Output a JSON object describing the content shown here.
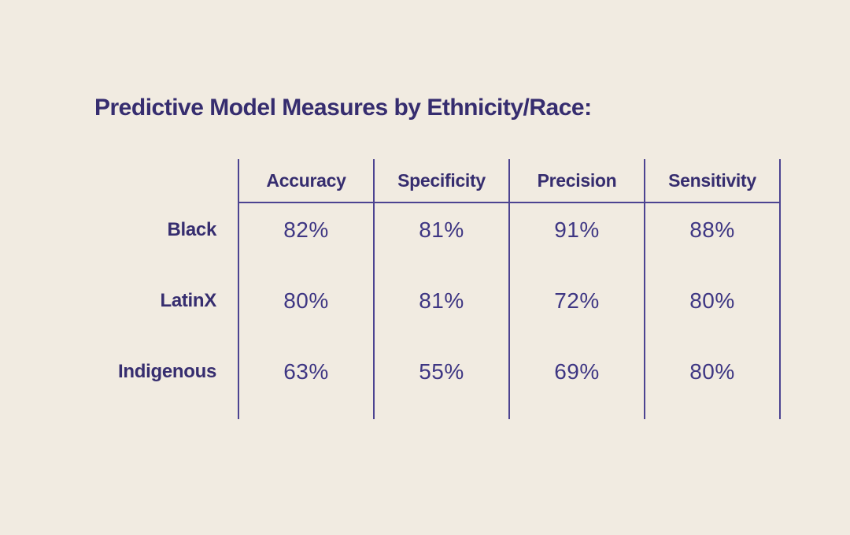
{
  "title": "Predictive Model Measures by Ethnicity/Race:",
  "table": {
    "columns": [
      "Accuracy",
      "Specificity",
      "Precision",
      "Sensitivity"
    ],
    "rows": [
      {
        "label": "Black",
        "values": [
          "82%",
          "81%",
          "91%",
          "88%"
        ]
      },
      {
        "label": "LatinX",
        "values": [
          "80%",
          "81%",
          "72%",
          "80%"
        ]
      },
      {
        "label": "Indigenous",
        "values": [
          "63%",
          "55%",
          "69%",
          "80%"
        ]
      }
    ]
  },
  "chart_data": {
    "type": "table",
    "title": "Predictive Model Measures by Ethnicity/Race:",
    "columns": [
      "Accuracy",
      "Specificity",
      "Precision",
      "Sensitivity"
    ],
    "row_labels": [
      "Black",
      "LatinX",
      "Indigenous"
    ],
    "values_pct": [
      [
        82,
        81,
        91,
        88
      ],
      [
        80,
        81,
        72,
        80
      ],
      [
        63,
        55,
        69,
        80
      ]
    ],
    "layout_hints": {
      "header_position": "top",
      "row_labels_position": "left",
      "gridlines": "vertical-column-separators-and-header-underline"
    }
  },
  "colors": {
    "background": "#F1EBE1",
    "heading_text": "#362D6F",
    "value_text": "#3E3683",
    "line": "#4C4391"
  }
}
